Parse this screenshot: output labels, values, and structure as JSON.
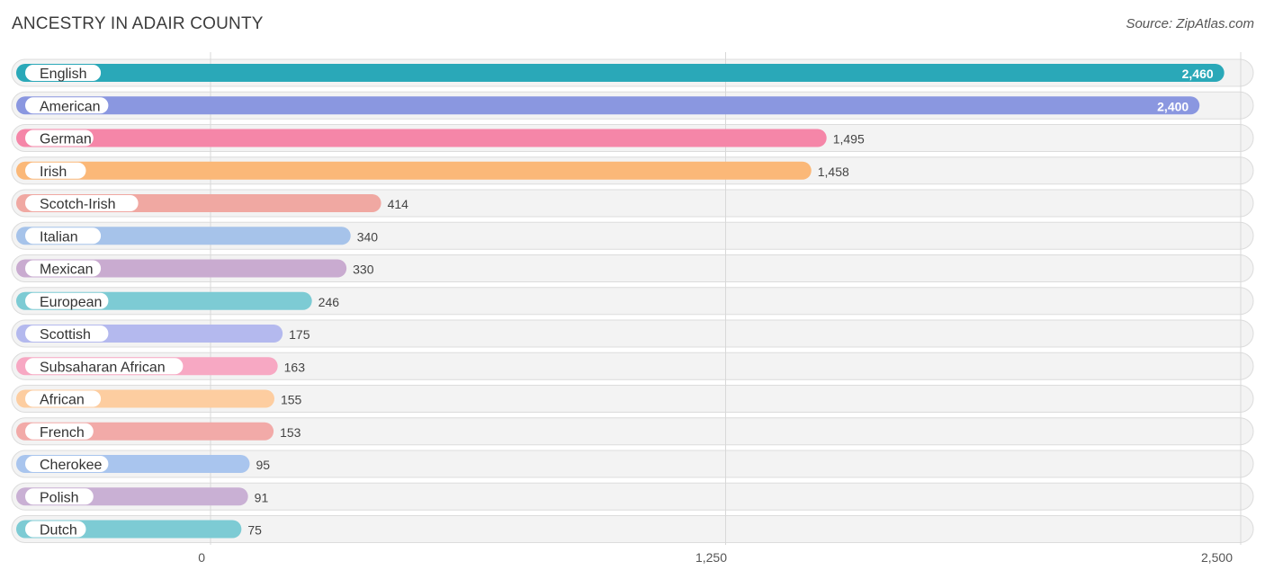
{
  "header": {
    "title": "ANCESTRY IN ADAIR COUNTY",
    "source": "Source: ZipAtlas.com"
  },
  "chart_data": {
    "type": "bar",
    "orientation": "horizontal",
    "title": "ANCESTRY IN ADAIR COUNTY",
    "xlabel": "",
    "ylabel": "",
    "xlim": [
      0,
      2500
    ],
    "ticks": [
      {
        "value": 0,
        "label": "0"
      },
      {
        "value": 1250,
        "label": "1,250"
      },
      {
        "value": 2500,
        "label": "2,500"
      }
    ],
    "grid": true,
    "categories": [
      "English",
      "American",
      "German",
      "Irish",
      "Scotch-Irish",
      "Italian",
      "Mexican",
      "European",
      "Scottish",
      "Subsaharan African",
      "African",
      "French",
      "Cherokee",
      "Polish",
      "Dutch"
    ],
    "values": [
      2460,
      2400,
      1495,
      1458,
      414,
      340,
      330,
      246,
      175,
      163,
      155,
      153,
      95,
      91,
      75
    ],
    "value_labels": [
      "2,460",
      "2,400",
      "1,495",
      "1,458",
      "414",
      "340",
      "330",
      "246",
      "175",
      "163",
      "155",
      "153",
      "95",
      "91",
      "75"
    ],
    "colors": [
      "#2aa8b8",
      "#8a97e0",
      "#f586a8",
      "#fbb878",
      "#f0a8a2",
      "#a6c3ea",
      "#c9abd0",
      "#7dcbd4",
      "#b4b9ee",
      "#f7a8c3",
      "#fdcda0",
      "#f2aaa8",
      "#a9c5ee",
      "#c9b0d4",
      "#7dcbd4"
    ]
  }
}
